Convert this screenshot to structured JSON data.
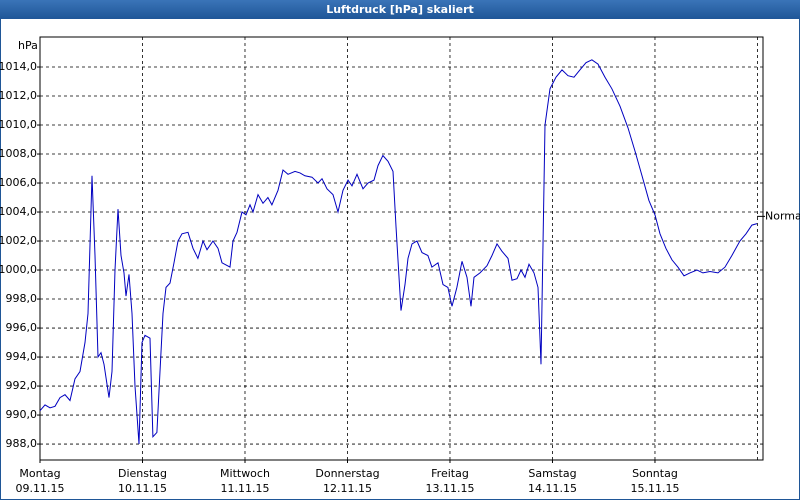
{
  "chart_data": {
    "type": "line",
    "title": "Luftdruck [hPa] skaliert",
    "y_unit": "hPa",
    "annotation": {
      "text": "Normal",
      "value": 1003.7
    },
    "xlim": [
      0,
      7.054
    ],
    "ylim": [
      986.9,
      1016.07
    ],
    "xticks": [
      {
        "value": 0,
        "label": "Montag"
      },
      {
        "value": 1,
        "label": "Dienstag"
      },
      {
        "value": 2,
        "label": "Mittwoch"
      },
      {
        "value": 3,
        "label": "Donnerstag"
      },
      {
        "value": 4,
        "label": "Freitag"
      },
      {
        "value": 5,
        "label": "Samstag"
      },
      {
        "value": 6,
        "label": "Sonntag"
      }
    ],
    "xtick_dates": [
      "09.11.15",
      "10.11.15",
      "11.11.15",
      "12.11.15",
      "13.11.15",
      "14.11.15",
      "15.11.15"
    ],
    "xgrid": [
      1,
      2,
      3,
      4,
      5,
      6,
      7
    ],
    "yticks": [
      {
        "value": 988,
        "label": "988,0"
      },
      {
        "value": 990,
        "label": "990,0"
      },
      {
        "value": 992,
        "label": "992,0"
      },
      {
        "value": 994,
        "label": "994,0"
      },
      {
        "value": 996,
        "label": "996,0"
      },
      {
        "value": 998,
        "label": "998,0"
      },
      {
        "value": 1000,
        "label": "1000,0"
      },
      {
        "value": 1002,
        "label": "1002,0"
      },
      {
        "value": 1004,
        "label": "1004,0"
      },
      {
        "value": 1006,
        "label": "1006,0"
      },
      {
        "value": 1008,
        "label": "1008,0"
      },
      {
        "value": 1010,
        "label": "1010,0"
      },
      {
        "value": 1012,
        "label": "1012,0"
      },
      {
        "value": 1014,
        "label": "1014,0"
      }
    ],
    "grid": true,
    "x": [
      0,
      0.049,
      0.098,
      0.146,
      0.195,
      0.244,
      0.293,
      0.341,
      0.39,
      0.439,
      0.468,
      0.507,
      0.537,
      0.566,
      0.595,
      0.624,
      0.673,
      0.702,
      0.732,
      0.761,
      0.79,
      0.82,
      0.839,
      0.868,
      0.898,
      0.927,
      0.966,
      0.995,
      1.024,
      1.073,
      1.102,
      1.141,
      1.171,
      1.2,
      1.229,
      1.268,
      1.307,
      1.346,
      1.385,
      1.444,
      1.493,
      1.541,
      1.59,
      1.629,
      1.688,
      1.737,
      1.776,
      1.854,
      1.883,
      1.922,
      1.971,
      2.01,
      2.049,
      2.078,
      2.127,
      2.176,
      2.224,
      2.263,
      2.322,
      2.371,
      2.42,
      2.488,
      2.537,
      2.585,
      2.654,
      2.712,
      2.751,
      2.8,
      2.859,
      2.907,
      2.956,
      3.005,
      3.044,
      3.093,
      3.151,
      3.2,
      3.259,
      3.298,
      3.346,
      3.395,
      3.444,
      3.473,
      3.522,
      3.561,
      3.59,
      3.629,
      3.678,
      3.727,
      3.785,
      3.824,
      3.883,
      3.932,
      3.98,
      4.02,
      4.068,
      4.117,
      4.166,
      4.205,
      4.234,
      4.293,
      4.361,
      4.41,
      4.459,
      4.507,
      4.566,
      4.605,
      4.654,
      4.693,
      4.732,
      4.771,
      4.82,
      4.859,
      4.888,
      4.927,
      4.976,
      5.034,
      5.093,
      5.151,
      5.21,
      5.268,
      5.327,
      5.385,
      5.444,
      5.512,
      5.58,
      5.659,
      5.737,
      5.805,
      5.873,
      5.941,
      6.0,
      6.049,
      6.107,
      6.166,
      6.224,
      6.283,
      6.341,
      6.41,
      6.468,
      6.537,
      6.615,
      6.683,
      6.751,
      6.829,
      6.888,
      6.946,
      6.995
    ],
    "series": [
      {
        "name": "Luftdruck",
        "color": "#0000c0",
        "values": [
          990.3,
          990.7,
          990.5,
          990.6,
          991.2,
          991.4,
          991.0,
          992.5,
          993.0,
          995.0,
          997.0,
          1006.5,
          1001.0,
          994.0,
          994.3,
          993.5,
          991.2,
          993.0,
          1000.0,
          1004.2,
          1001.0,
          999.8,
          998.2,
          999.7,
          997.0,
          992.0,
          988.0,
          995.0,
          995.5,
          995.3,
          988.5,
          988.8,
          993.0,
          997.0,
          998.8,
          999.1,
          1000.5,
          1002.0,
          1002.5,
          1002.6,
          1001.5,
          1000.8,
          1002.0,
          1001.4,
          1002.0,
          1001.5,
          1000.5,
          1000.2,
          1002.0,
          1002.6,
          1004.0,
          1003.8,
          1004.5,
          1004.0,
          1005.2,
          1004.6,
          1005.0,
          1004.5,
          1005.5,
          1006.9,
          1006.6,
          1006.8,
          1006.7,
          1006.5,
          1006.4,
          1006.0,
          1006.3,
          1005.6,
          1005.2,
          1004.0,
          1005.5,
          1006.2,
          1005.8,
          1006.6,
          1005.6,
          1006.0,
          1006.2,
          1007.2,
          1007.9,
          1007.5,
          1006.8,
          1003.0,
          997.2,
          999.0,
          1000.8,
          1001.8,
          1002.0,
          1001.2,
          1001.0,
          1000.2,
          1000.5,
          999.0,
          998.8,
          997.5,
          998.8,
          1000.6,
          999.5,
          997.5,
          999.5,
          999.8,
          1000.3,
          1001.0,
          1001.8,
          1001.3,
          1000.8,
          999.3,
          999.4,
          1000.0,
          999.5,
          1000.4,
          999.8,
          998.8,
          993.5,
          1010.0,
          1012.5,
          1013.3,
          1013.8,
          1013.4,
          1013.3,
          1013.8,
          1014.3,
          1014.5,
          1014.2,
          1013.3,
          1012.5,
          1011.3,
          1009.8,
          1008.2,
          1006.5,
          1004.8,
          1003.8,
          1002.5,
          1001.5,
          1000.7,
          1000.2,
          999.6,
          999.8,
          1000.0,
          999.8,
          999.9,
          999.8,
          1000.2,
          1001.0,
          1002.0,
          1002.5,
          1003.1,
          1003.2
        ]
      }
    ]
  }
}
